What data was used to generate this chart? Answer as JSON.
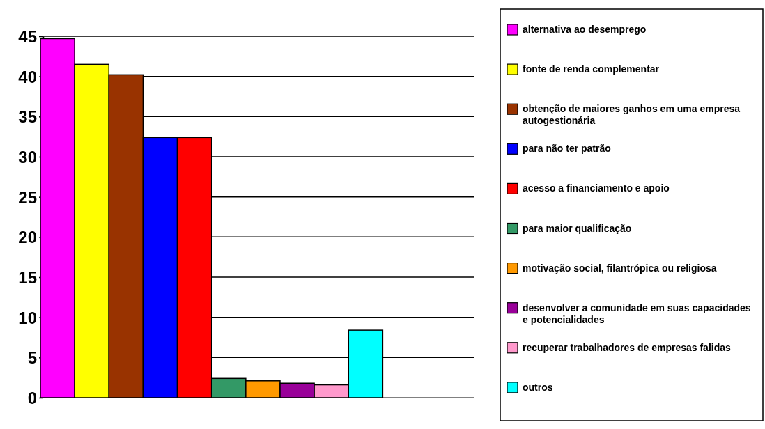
{
  "chart_data": {
    "type": "bar",
    "categories": [
      null
    ],
    "ylim": [
      0,
      45
    ],
    "yticks": [
      0,
      5,
      10,
      15,
      20,
      25,
      30,
      35,
      40,
      45
    ],
    "grid": "y",
    "legend": "right",
    "series": [
      {
        "name": "alternativa ao desemprego",
        "color": "#ff00ff",
        "values": [
          44.7
        ]
      },
      {
        "name": "fonte de renda complementar",
        "color": "#ffff00",
        "values": [
          41.5
        ]
      },
      {
        "name": "obtenção de maiores ganhos em uma empresa autogestionária",
        "color": "#993300",
        "values": [
          40.2
        ]
      },
      {
        "name": "para não ter patrão",
        "color": "#0000ff",
        "values": [
          32.4
        ]
      },
      {
        "name": "acesso a financiamento e apoio",
        "color": "#ff0000",
        "values": [
          32.4
        ]
      },
      {
        "name": "para maior qualificação",
        "color": "#339966",
        "values": [
          2.4
        ]
      },
      {
        "name": "motivação social, filantrópica ou religiosa",
        "color": "#ff9900",
        "values": [
          2.1
        ]
      },
      {
        "name": "desenvolver a comunidade em suas capacidades e potencialidades",
        "color": "#990099",
        "values": [
          1.8
        ]
      },
      {
        "name": "recuperar trabalhadores de empresas falidas",
        "color": "#ff99cc",
        "values": [
          1.6
        ]
      },
      {
        "name": "outros",
        "color": "#00ffff",
        "values": [
          8.4
        ]
      }
    ]
  }
}
